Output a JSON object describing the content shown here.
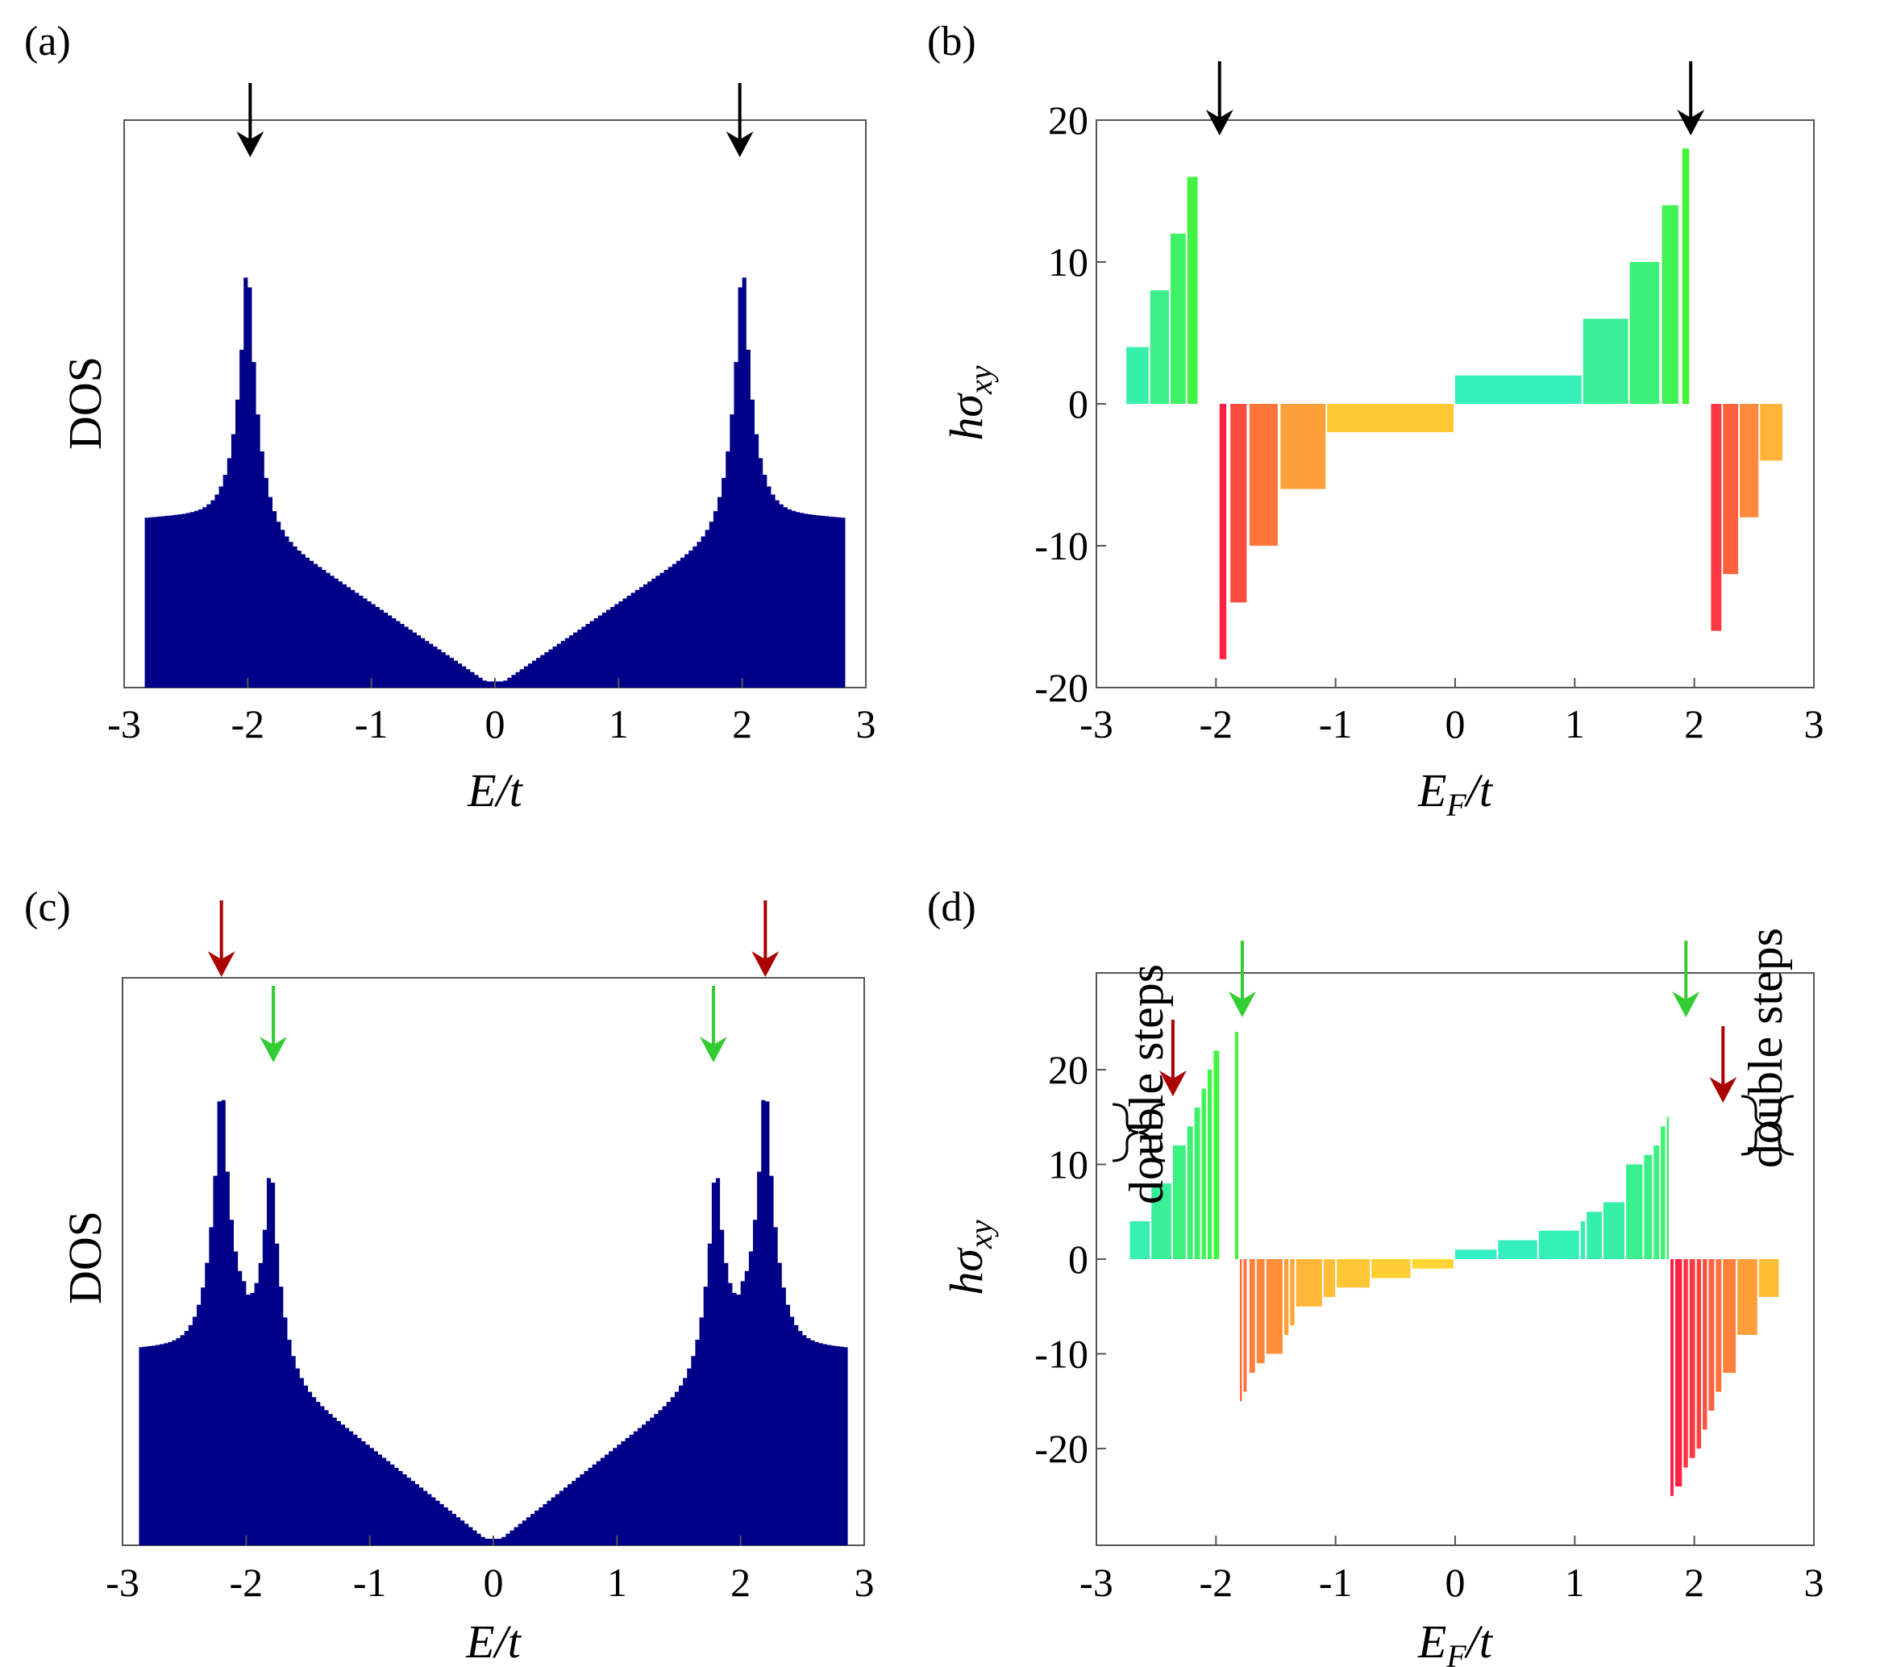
{
  "colors": {
    "dos_fill": "#000088",
    "arrow_black": "#000000",
    "arrow_red": "#aa0000",
    "arrow_green": "#33cc33"
  },
  "panels": {
    "a": {
      "label": "(a)",
      "xlabel": "E/t",
      "ylabel": "DOS",
      "xticks": [
        "-3",
        "-2",
        "-1",
        "0",
        "1",
        "2",
        "3"
      ]
    },
    "b": {
      "label": "(b)",
      "xlabel": "E",
      "xlabel_sub": "F",
      "xlabel_tail": "/t",
      "ylabel": "hσ",
      "ylabel_sub": "xy",
      "xticks": [
        "-3",
        "-2",
        "-1",
        "0",
        "1",
        "2",
        "3"
      ],
      "yticks": [
        "20",
        "10",
        "0",
        "-10",
        "-20"
      ]
    },
    "c": {
      "label": "(c)",
      "xlabel": "E/t",
      "ylabel": "DOS",
      "xticks": [
        "-3",
        "-2",
        "-1",
        "0",
        "1",
        "2",
        "3"
      ]
    },
    "d": {
      "label": "(d)",
      "xlabel": "E",
      "xlabel_sub": "F",
      "xlabel_tail": "/t",
      "ylabel": "hσ",
      "ylabel_sub": "xy",
      "xticks": [
        "-3",
        "-2",
        "-1",
        "0",
        "1",
        "2",
        "3"
      ],
      "yticks": [
        "20",
        "10",
        "0",
        "-10",
        "-20"
      ],
      "annotation_left": "double steps",
      "annotation_right": "double steps"
    }
  },
  "chart_data": [
    {
      "panel": "a",
      "type": "bar",
      "xlim": [
        -3,
        3
      ],
      "ylim": [
        0,
        1
      ],
      "y_ticks_shown": false,
      "band_edges": [
        -2.83,
        2.83
      ],
      "vh_peaks": [
        -2.0,
        2.0
      ],
      "peak_height": 0.9,
      "edge_height": 0.33,
      "arrows": [
        {
          "x": -2.0,
          "color": "black"
        },
        {
          "x": 2.0,
          "color": "black"
        }
      ]
    },
    {
      "panel": "b",
      "type": "bar",
      "xlim": [
        -3,
        3
      ],
      "ylim": [
        -20,
        20
      ],
      "steps": [
        {
          "x0": -2.75,
          "x1": -2.55,
          "y": 4
        },
        {
          "x0": -2.55,
          "x1": -2.38,
          "y": 8
        },
        {
          "x0": -2.38,
          "x1": -2.24,
          "y": 12
        },
        {
          "x0": -2.24,
          "x1": -2.14,
          "y": 16
        },
        {
          "x0": -1.97,
          "x1": -1.9,
          "y": -18
        },
        {
          "x0": -1.88,
          "x1": -1.73,
          "y": -14
        },
        {
          "x0": -1.72,
          "x1": -1.47,
          "y": -10
        },
        {
          "x0": -1.46,
          "x1": -1.07,
          "y": -6
        },
        {
          "x0": -1.07,
          "x1": 0.0,
          "y": -2
        },
        {
          "x0": 0.0,
          "x1": 1.07,
          "y": 2
        },
        {
          "x0": 1.07,
          "x1": 1.46,
          "y": 6
        },
        {
          "x0": 1.46,
          "x1": 1.72,
          "y": 10
        },
        {
          "x0": 1.73,
          "x1": 1.88,
          "y": 14
        },
        {
          "x0": 1.9,
          "x1": 1.97,
          "y": 18
        },
        {
          "x0": 2.14,
          "x1": 2.24,
          "y": -16
        },
        {
          "x0": 2.24,
          "x1": 2.38,
          "y": -12
        },
        {
          "x0": 2.38,
          "x1": 2.55,
          "y": -8
        },
        {
          "x0": 2.55,
          "x1": 2.75,
          "y": -4
        }
      ],
      "arrows": [
        {
          "x": -1.97,
          "color": "black"
        },
        {
          "x": 1.97,
          "color": "black"
        }
      ]
    },
    {
      "panel": "c",
      "type": "bar",
      "xlim": [
        -3,
        3
      ],
      "ylim": [
        0,
        1
      ],
      "y_ticks_shown": false,
      "band_edges": [
        -2.85,
        2.85
      ],
      "vh_peaks": [
        -2.2,
        -1.8,
        1.8,
        2.2
      ],
      "peak_heights": [
        0.9,
        0.77,
        0.77,
        0.9
      ],
      "edge_height": 0.36,
      "arrows": [
        {
          "x": -2.2,
          "color": "red"
        },
        {
          "x": -1.78,
          "color": "green"
        },
        {
          "x": 1.78,
          "color": "green"
        },
        {
          "x": 2.2,
          "color": "red"
        }
      ]
    },
    {
      "panel": "d",
      "type": "bar",
      "xlim": [
        -3,
        3
      ],
      "ylim": [
        -30,
        30
      ],
      "steps": [
        {
          "x0": -2.72,
          "x1": -2.54,
          "y": 4
        },
        {
          "x0": -2.54,
          "x1": -2.36,
          "y": 8
        },
        {
          "x0": -2.36,
          "x1": -2.24,
          "y": 12
        },
        {
          "x0": -2.24,
          "x1": -2.18,
          "y": 14
        },
        {
          "x0": -2.18,
          "x1": -2.12,
          "y": 16
        },
        {
          "x0": -2.12,
          "x1": -2.07,
          "y": 18
        },
        {
          "x0": -2.07,
          "x1": -2.02,
          "y": 20
        },
        {
          "x0": -2.02,
          "x1": -1.96,
          "y": 22
        },
        {
          "x0": -1.84,
          "x1": -1.8,
          "y": 24
        },
        {
          "x0": -1.8,
          "x1": -1.77,
          "y": -15
        },
        {
          "x0": -1.77,
          "x1": -1.73,
          "y": -14
        },
        {
          "x0": -1.72,
          "x1": -1.66,
          "y": -12
        },
        {
          "x0": -1.66,
          "x1": -1.58,
          "y": -11
        },
        {
          "x0": -1.58,
          "x1": -1.43,
          "y": -10
        },
        {
          "x0": -1.43,
          "x1": -1.38,
          "y": -8
        },
        {
          "x0": -1.38,
          "x1": -1.33,
          "y": -7
        },
        {
          "x0": -1.33,
          "x1": -1.1,
          "y": -5
        },
        {
          "x0": -1.1,
          "x1": -0.99,
          "y": -4
        },
        {
          "x0": -0.99,
          "x1": -0.7,
          "y": -3
        },
        {
          "x0": -0.7,
          "x1": -0.36,
          "y": -2
        },
        {
          "x0": -0.36,
          "x1": 0.0,
          "y": -1
        },
        {
          "x0": 0.0,
          "x1": 0.36,
          "y": 1
        },
        {
          "x0": 0.36,
          "x1": 0.7,
          "y": 2
        },
        {
          "x0": 0.7,
          "x1": 1.05,
          "y": 3
        },
        {
          "x0": 1.05,
          "x1": 1.1,
          "y": 4
        },
        {
          "x0": 1.1,
          "x1": 1.24,
          "y": 5
        },
        {
          "x0": 1.24,
          "x1": 1.43,
          "y": 6
        },
        {
          "x0": 1.43,
          "x1": 1.58,
          "y": 10
        },
        {
          "x0": 1.58,
          "x1": 1.66,
          "y": 11
        },
        {
          "x0": 1.66,
          "x1": 1.72,
          "y": 12
        },
        {
          "x0": 1.72,
          "x1": 1.77,
          "y": 14
        },
        {
          "x0": 1.77,
          "x1": 1.8,
          "y": 15
        },
        {
          "x0": 1.8,
          "x1": 1.84,
          "y": -25
        },
        {
          "x0": 1.84,
          "x1": 1.91,
          "y": -24
        },
        {
          "x0": 1.91,
          "x1": 1.96,
          "y": -22
        },
        {
          "x0": 1.96,
          "x1": 2.02,
          "y": -21
        },
        {
          "x0": 2.02,
          "x1": 2.07,
          "y": -20
        },
        {
          "x0": 2.07,
          "x1": 2.12,
          "y": -18
        },
        {
          "x0": 2.12,
          "x1": 2.18,
          "y": -16
        },
        {
          "x0": 2.18,
          "x1": 2.24,
          "y": -14
        },
        {
          "x0": 2.24,
          "x1": 2.36,
          "y": -12
        },
        {
          "x0": 2.36,
          "x1": 2.54,
          "y": -8
        },
        {
          "x0": 2.54,
          "x1": 2.72,
          "y": -4
        }
      ],
      "arrows": [
        {
          "x": -2.36,
          "color": "red"
        },
        {
          "x": -1.78,
          "color": "green"
        },
        {
          "x": 1.93,
          "color": "green"
        },
        {
          "x": 2.24,
          "color": "red"
        }
      ]
    }
  ]
}
